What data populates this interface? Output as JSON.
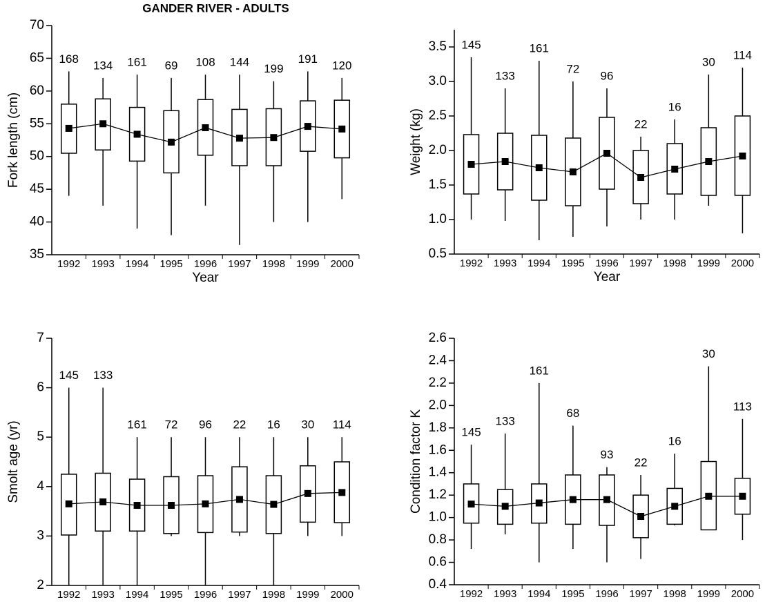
{
  "chart_data": [
    {
      "type": "box",
      "title": "GANDER RIVER - ADULTS",
      "x_label": "Year",
      "y_label": "Fork length (cm)",
      "categories": [
        "1992",
        "1993",
        "1994",
        "1995",
        "1996",
        "1997",
        "1998",
        "1999",
        "2000"
      ],
      "whisker_low": [
        44,
        42.5,
        39,
        38,
        42.5,
        36.5,
        40,
        40,
        43.5
      ],
      "q1": [
        50.5,
        51,
        49.3,
        47.5,
        50.2,
        48.6,
        48.6,
        50.8,
        49.8
      ],
      "mean": [
        54.3,
        55,
        53.4,
        52.2,
        54.4,
        52.8,
        52.9,
        54.6,
        54.2
      ],
      "q3": [
        58,
        58.8,
        57.5,
        57,
        58.7,
        57.2,
        57.3,
        58.5,
        58.6
      ],
      "whisker_high": [
        63,
        62,
        62.5,
        62,
        62.5,
        62.5,
        61.5,
        63,
        62
      ],
      "n": [
        168,
        134,
        161,
        69,
        108,
        144,
        199,
        191,
        120
      ],
      "color": "#000000",
      "ylim": [
        35,
        70
      ],
      "yticks": [
        35,
        40,
        45,
        50,
        55,
        60,
        65,
        70
      ]
    },
    {
      "type": "box",
      "x_label": "Year",
      "y_label": "Weight (kg)",
      "categories": [
        "1992",
        "1993",
        "1994",
        "1995",
        "1996",
        "1997",
        "1998",
        "1999",
        "2000"
      ],
      "whisker_low": [
        1.0,
        0.98,
        0.7,
        0.75,
        0.9,
        1.0,
        1.0,
        1.2,
        0.8
      ],
      "q1": [
        1.37,
        1.43,
        1.28,
        1.2,
        1.44,
        1.23,
        1.37,
        1.35,
        1.35
      ],
      "mean": [
        1.8,
        1.84,
        1.75,
        1.69,
        1.96,
        1.61,
        1.73,
        1.84,
        1.92
      ],
      "q3": [
        2.23,
        2.25,
        2.22,
        2.18,
        2.48,
        2.0,
        2.1,
        2.33,
        2.5
      ],
      "whisker_high": [
        3.35,
        2.9,
        3.3,
        3.0,
        2.9,
        2.2,
        2.45,
        3.1,
        3.2
      ],
      "n": [
        145,
        133,
        161,
        72,
        96,
        22,
        16,
        30,
        114
      ],
      "color": "#000000",
      "ylim": [
        0.5,
        3.75
      ],
      "yticks": [
        0.5,
        {
          "value": 1,
          "label": "1.0"
        },
        1.5,
        {
          "value": 2,
          "label": "2.0"
        },
        2.5,
        {
          "value": 3,
          "label": "3.0"
        },
        3.5
      ]
    },
    {
      "type": "box",
      "x_label": "Year",
      "y_label": "Smolt age (yr)",
      "categories": [
        "1992",
        "1993",
        "1994",
        "1995",
        "1996",
        "1997",
        "1998",
        "1999",
        "2000"
      ],
      "whisker_low": [
        2,
        2,
        2,
        3,
        2,
        3,
        2,
        3,
        3
      ],
      "q1": [
        3.02,
        3.1,
        3.1,
        3.05,
        3.07,
        3.08,
        3.05,
        3.28,
        3.27
      ],
      "mean": [
        3.65,
        3.69,
        3.62,
        3.62,
        3.65,
        3.74,
        3.64,
        3.86,
        3.88
      ],
      "q3": [
        4.25,
        4.27,
        4.15,
        4.2,
        4.22,
        4.4,
        4.22,
        4.42,
        4.5
      ],
      "whisker_high": [
        6,
        6,
        5,
        5,
        5,
        5,
        5,
        5,
        5
      ],
      "n": [
        145,
        133,
        161,
        72,
        96,
        22,
        16,
        30,
        114
      ],
      "color": "#000000",
      "ylim": [
        2,
        7
      ],
      "yticks": [
        2,
        3,
        4,
        5,
        6,
        7
      ]
    },
    {
      "type": "box",
      "x_label": "Year",
      "y_label": "Condition factor K",
      "categories": [
        "1992",
        "1993",
        "1994",
        "1995",
        "1996",
        "1997",
        "1998",
        "1999",
        "2000"
      ],
      "whisker_low": [
        0.72,
        0.85,
        0.6,
        0.72,
        0.6,
        0.63,
        0.93,
        0.89,
        0.8
      ],
      "q1": [
        0.95,
        0.94,
        0.95,
        0.94,
        0.93,
        0.82,
        0.94,
        0.89,
        1.03
      ],
      "mean": [
        1.12,
        1.1,
        1.13,
        1.16,
        1.16,
        1.01,
        1.1,
        1.19,
        1.19
      ],
      "q3": [
        1.3,
        1.25,
        1.3,
        1.38,
        1.38,
        1.2,
        1.26,
        1.5,
        1.35
      ],
      "whisker_high": [
        1.65,
        1.75,
        2.2,
        1.82,
        1.45,
        1.38,
        1.57,
        2.35,
        1.88
      ],
      "n": [
        145,
        133,
        161,
        68,
        93,
        22,
        16,
        30,
        113
      ],
      "color": "#000000",
      "ylim": [
        0.4,
        2.6
      ],
      "yticks": [
        0.4,
        0.6,
        0.8,
        {
          "value": 1,
          "label": "1.0"
        },
        1.2,
        1.4,
        1.6,
        1.8,
        {
          "value": 2,
          "label": "2.0"
        },
        2.2,
        2.4,
        2.6
      ]
    }
  ]
}
